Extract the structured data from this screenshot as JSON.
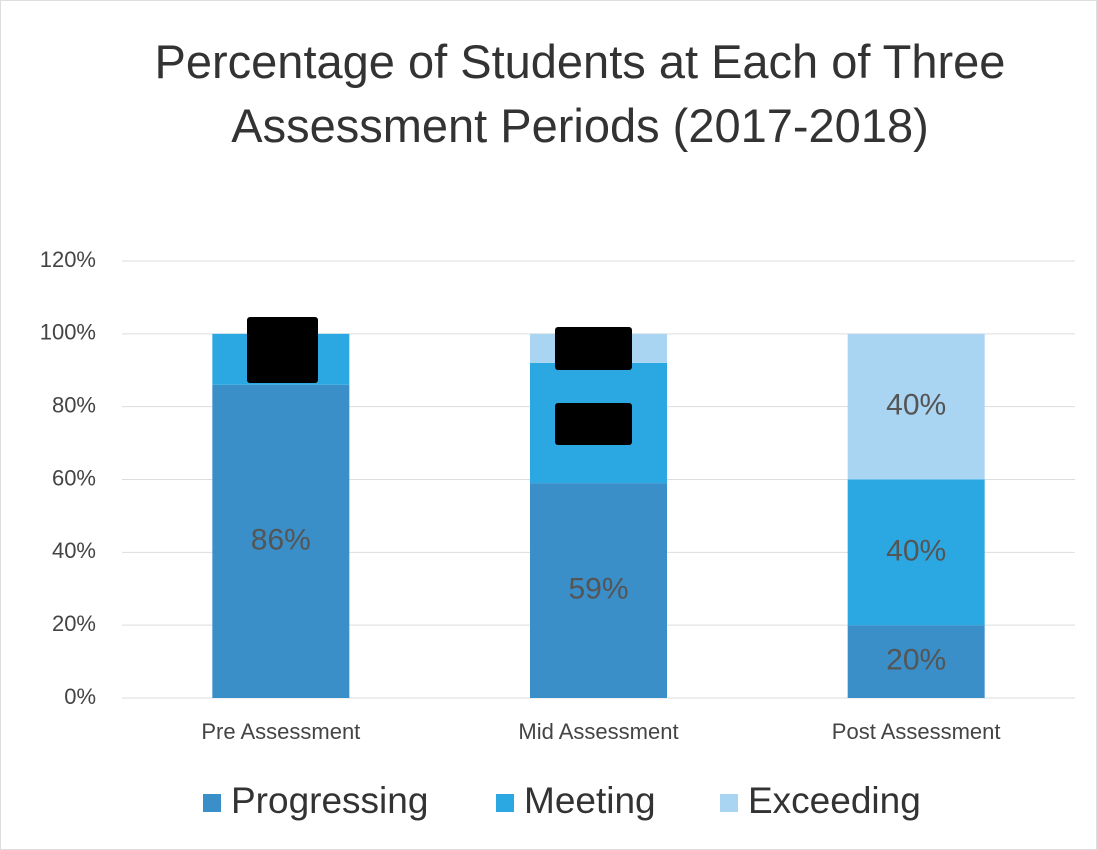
{
  "chart_data": {
    "type": "stacked_bar",
    "title": "Percentage of Students at Each of Three Assessment Periods (2017-2018)",
    "categories": [
      "Pre Assessment",
      "Mid Assessment",
      "Post Assessment"
    ],
    "series": [
      {
        "name": "Progressing",
        "color": "#3a8fc8",
        "values": [
          86,
          59,
          20
        ],
        "value_labels": [
          "86%",
          "59%",
          "20%"
        ]
      },
      {
        "name": "Meeting",
        "color": "#2ba8e2",
        "values": [
          14,
          33,
          40
        ],
        "value_labels": [
          null,
          null,
          "40%"
        ]
      },
      {
        "name": "Exceeding",
        "color": "#a9d5f2",
        "values": [
          0,
          8,
          40
        ],
        "value_labels": [
          null,
          null,
          "40%"
        ]
      }
    ],
    "ylim": [
      0,
      120
    ],
    "yticks": [
      {
        "value": 0,
        "label": "0%"
      },
      {
        "value": 20,
        "label": "20%"
      },
      {
        "value": 40,
        "label": "40%"
      },
      {
        "value": 60,
        "label": "60%"
      },
      {
        "value": 80,
        "label": "80%"
      },
      {
        "value": 100,
        "label": "100%"
      },
      {
        "value": 120,
        "label": "120%"
      }
    ],
    "grid": true,
    "legend": "bottom"
  }
}
